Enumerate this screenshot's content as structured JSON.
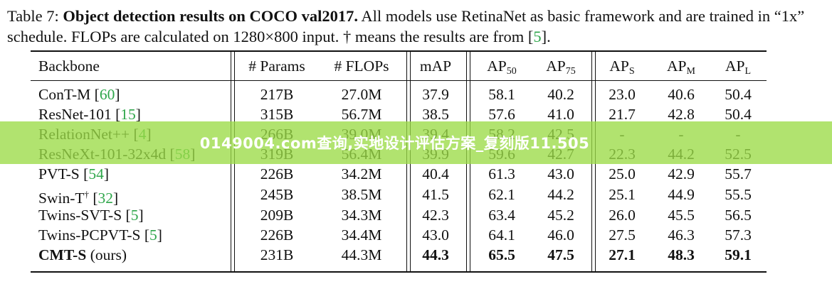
{
  "caption": {
    "label": "Table 7:",
    "title": "Object detection results on COCO val2017.",
    "text1": "All models use RetinaNet as basic framework and are trained in “1x” schedule. FLOPs are calculated on 1280×800 input. † means the results are from [",
    "cite": "5",
    "text2": "]."
  },
  "columns": [
    "Backbone",
    "# Params",
    "# FLOPs",
    "mAP",
    "AP",
    "AP",
    "AP",
    "AP",
    "AP"
  ],
  "column_subscripts": [
    "",
    "",
    "",
    "",
    "50",
    "75",
    "S",
    "M",
    "L"
  ],
  "rows": [
    {
      "name": "ConT-M",
      "cite": "60",
      "dagger": "",
      "suffix": "",
      "values": [
        "217B",
        "27.0M",
        "37.9",
        "58.1",
        "40.2",
        "23.0",
        "40.6",
        "50.4"
      ],
      "bold": false,
      "faded": false
    },
    {
      "name": "ResNet-101",
      "cite": "15",
      "dagger": "",
      "suffix": "",
      "values": [
        "315B",
        "56.7M",
        "38.5",
        "57.6",
        "41.0",
        "21.7",
        "42.8",
        "50.4"
      ],
      "bold": false,
      "faded": false
    },
    {
      "name": "RelationNet++",
      "cite": "4",
      "dagger": "",
      "suffix": "",
      "values": [
        "266B",
        "39.0M",
        "39.4",
        "58.2",
        "42.5",
        "-",
        "-",
        "-"
      ],
      "bold": false,
      "faded": true
    },
    {
      "name": "ResNeXt-101-32x4d",
      "cite": "58",
      "dagger": "",
      "suffix": "",
      "values": [
        "319B",
        "56.4M",
        "39.9",
        "59.6",
        "42.7",
        "22.3",
        "44.2",
        "52.5"
      ],
      "bold": false,
      "faded": true
    },
    {
      "name": "PVT-S",
      "cite": "54",
      "dagger": "",
      "suffix": "",
      "values": [
        "226B",
        "34.2M",
        "40.4",
        "61.3",
        "43.0",
        "25.0",
        "42.9",
        "55.7"
      ],
      "bold": false,
      "faded": false
    },
    {
      "name": "Swin-T",
      "cite": "32",
      "dagger": "†",
      "suffix": "",
      "values": [
        "245B",
        "38.5M",
        "41.5",
        "62.1",
        "44.2",
        "25.1",
        "44.9",
        "55.5"
      ],
      "bold": false,
      "faded": false
    },
    {
      "name": "Twins-SVT-S",
      "cite": "5",
      "dagger": "",
      "suffix": "",
      "values": [
        "209B",
        "34.3M",
        "42.3",
        "63.4",
        "45.2",
        "26.0",
        "45.5",
        "56.5"
      ],
      "bold": false,
      "faded": false
    },
    {
      "name": "Twins-PCPVT-S",
      "cite": "5",
      "dagger": "",
      "suffix": "",
      "values": [
        "226B",
        "34.4M",
        "43.0",
        "64.1",
        "46.0",
        "27.5",
        "46.3",
        "57.3"
      ],
      "bold": false,
      "faded": false
    },
    {
      "name": "CMT-S",
      "cite": "",
      "dagger": "",
      "suffix": "(ours)",
      "values": [
        "231B",
        "44.3M",
        "44.3",
        "65.5",
        "47.5",
        "27.1",
        "48.3",
        "59.1"
      ],
      "bold": true,
      "faded": false
    }
  ],
  "banner": "0149004.com查询,实地设计评估方案_复刻版11.505",
  "colors": {
    "cite": "#2ea64a",
    "banner": "#9bdb46"
  }
}
